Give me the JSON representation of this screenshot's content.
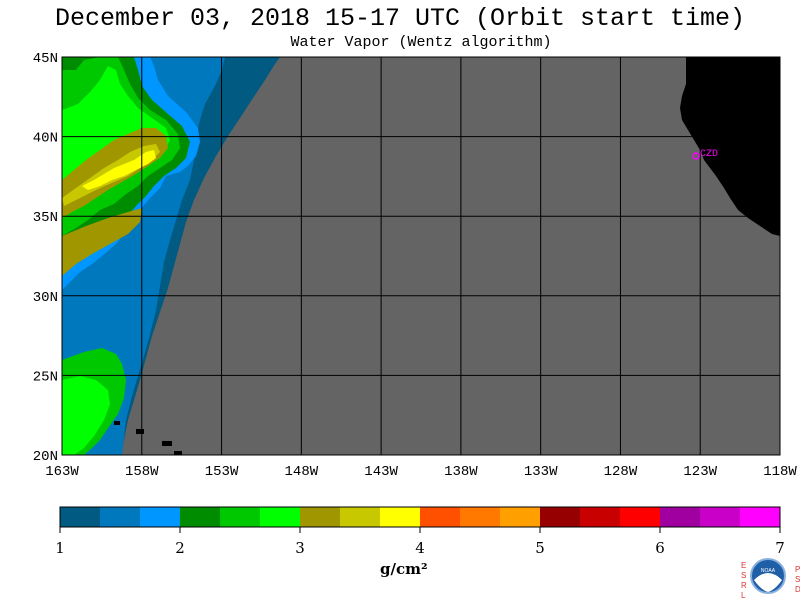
{
  "title": "December 03, 2018  15-17 UTC  (Orbit start time)",
  "subtitle": "Water Vapor (Wentz algorithm)",
  "map": {
    "lat_labels": [
      "45N",
      "40N",
      "35N",
      "30N",
      "25N",
      "20N"
    ],
    "lon_labels": [
      "163W",
      "158W",
      "153W",
      "148W",
      "143W",
      "138W",
      "133W",
      "128W",
      "123W",
      "118W"
    ],
    "station_label": "CZD",
    "colors": {
      "no_data": "#646464",
      "land": "#000000",
      "grid": "#000000",
      "station": "#ff00ff"
    }
  },
  "colorbar": {
    "ticks": [
      "1",
      "2",
      "3",
      "4",
      "5",
      "6",
      "7"
    ],
    "unit": "g/cm²",
    "colors": [
      "#005a82",
      "#0078be",
      "#0096ff",
      "#008c00",
      "#00c800",
      "#00ff00",
      "#a09600",
      "#c8c800",
      "#ffff00",
      "#ff5000",
      "#ff7800",
      "#ffa000",
      "#960000",
      "#c80000",
      "#ff0000",
      "#a000a0",
      "#c800c8",
      "#ff00ff"
    ]
  },
  "logo": {
    "left_letters": "ESRL",
    "right_letters": "PSD",
    "center": "NOAA"
  }
}
